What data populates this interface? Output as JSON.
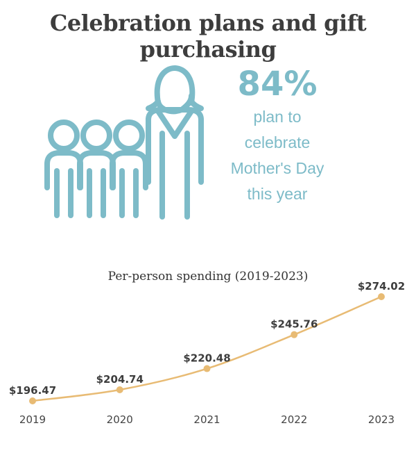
{
  "header": {
    "title": "Celebration plans and gift purchasing"
  },
  "stat": {
    "percent": "84%",
    "lines": [
      "plan to",
      "celebrate",
      "Mother's Day",
      "this year"
    ]
  },
  "icon": {
    "name": "family-icon",
    "color": "#7dbbc8"
  },
  "colors": {
    "accent": "#7dbbc8",
    "line": "#e8bb74",
    "text": "#3d3d3d"
  },
  "chart_data": {
    "type": "line",
    "title": "Per-person spending (2019-2023)",
    "categories": [
      "2019",
      "2020",
      "2021",
      "2022",
      "2023"
    ],
    "values": [
      196.47,
      204.74,
      220.48,
      245.76,
      274.02
    ],
    "labels": [
      "$196.47",
      "$204.74",
      "$220.48",
      "$245.76",
      "$274.02"
    ],
    "xlabel": "",
    "ylabel": "",
    "ylim": [
      190,
      280
    ],
    "grid": false
  }
}
